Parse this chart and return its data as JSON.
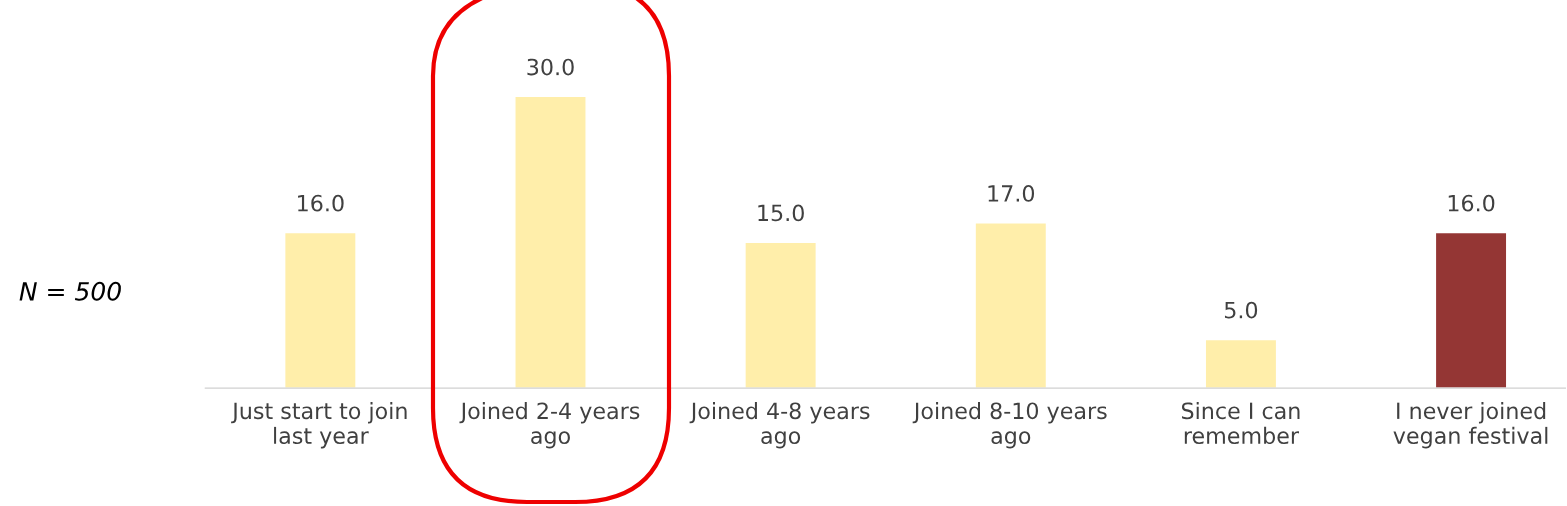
{
  "chart_data": {
    "type": "bar",
    "categories": [
      "Just start to join\nlast year",
      "Joined 2-4 years\nago",
      "Joined 4-8 years\nago",
      "Joined 8-10 years\nago",
      "Since I can\nremember",
      "I never joined\nvegan festival"
    ],
    "values": [
      16.0,
      30.0,
      15.0,
      17.0,
      5.0,
      16.0
    ],
    "value_labels": [
      "16.0",
      "30.0",
      "15.0",
      "17.0",
      "5.0",
      "16.0"
    ],
    "colors": [
      "#ffeeaa",
      "#ffeeaa",
      "#ffeeaa",
      "#ffeeaa",
      "#ffeeaa",
      "#943634"
    ],
    "annotations": [
      "N = 500"
    ],
    "grid": false,
    "legend": false
  }
}
